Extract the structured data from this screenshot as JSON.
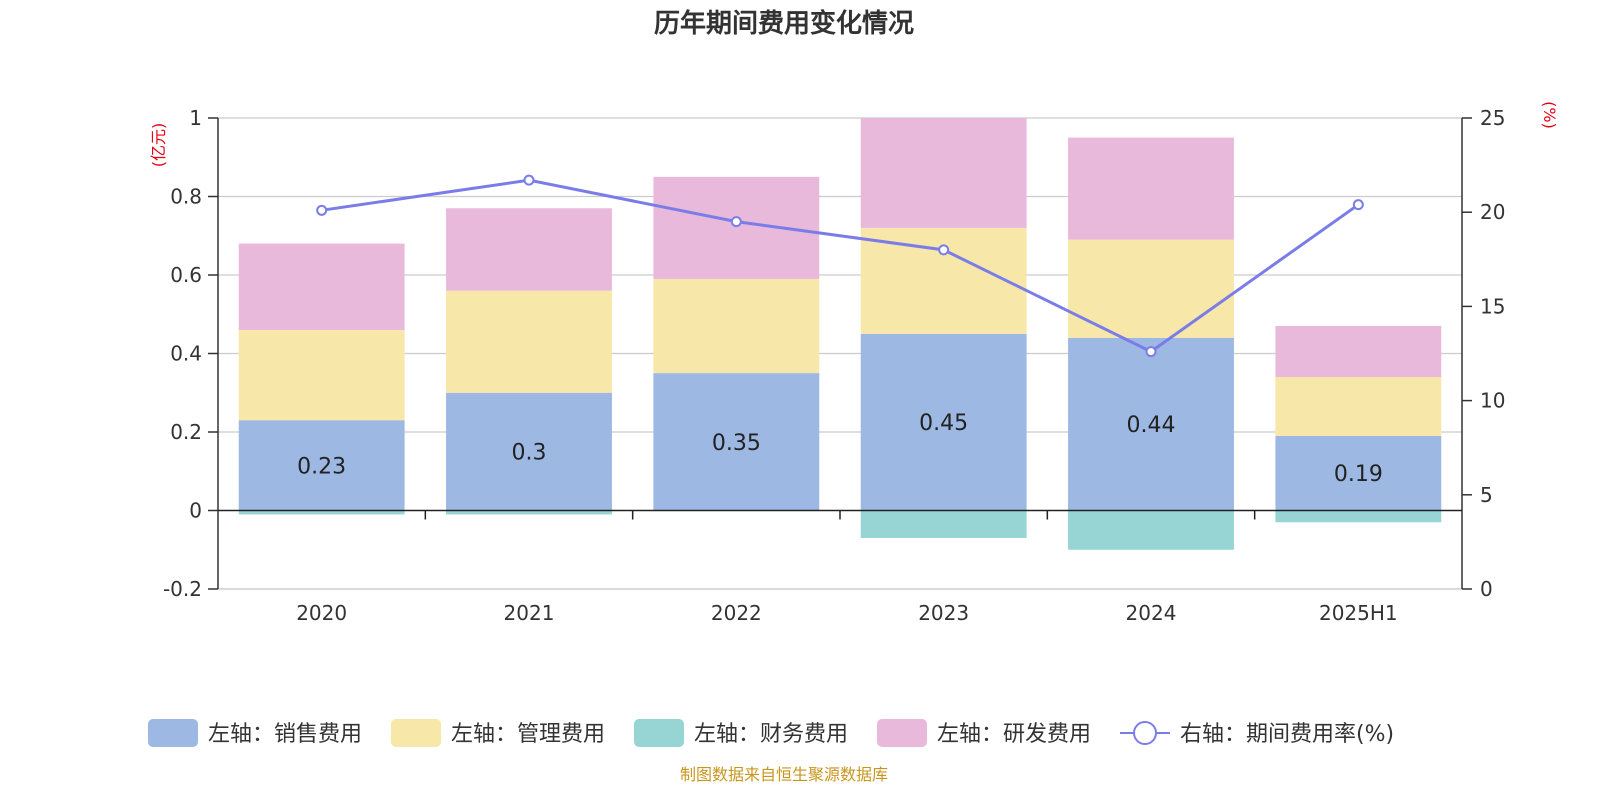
{
  "chart_data": {
    "type": "bar",
    "title": "历年期间费用变化情况",
    "categories": [
      "2020",
      "2021",
      "2022",
      "2023",
      "2024",
      "2025H1"
    ],
    "stacked": true,
    "left_axis": {
      "unit": "(亿元)",
      "ylim": [
        -0.2,
        1
      ],
      "ticks": [
        -0.2,
        0,
        0.2,
        0.4,
        0.6,
        0.8,
        1
      ]
    },
    "right_axis": {
      "unit": "(%)",
      "ylim": [
        0,
        25
      ],
      "ticks": [
        0,
        5,
        10,
        15,
        20,
        25
      ]
    },
    "series": [
      {
        "name": "左轴：销售费用",
        "axis": "left",
        "type": "bar",
        "color": "#9db8e2",
        "values": [
          0.23,
          0.3,
          0.35,
          0.45,
          0.44,
          0.19
        ],
        "labels": [
          "0.23",
          "0.3",
          "0.35",
          "0.45",
          "0.44",
          "0.19"
        ]
      },
      {
        "name": "左轴：管理费用",
        "axis": "left",
        "type": "bar",
        "color": "#f7e7a8",
        "values": [
          0.23,
          0.26,
          0.24,
          0.27,
          0.25,
          0.15
        ]
      },
      {
        "name": "左轴：财务费用",
        "axis": "left",
        "type": "bar",
        "color": "#97d4d4",
        "values": [
          -0.01,
          -0.01,
          0.0,
          -0.07,
          -0.1,
          -0.03
        ]
      },
      {
        "name": "左轴：研发费用",
        "axis": "left",
        "type": "bar",
        "color": "#e8b9da",
        "values": [
          0.22,
          0.21,
          0.26,
          0.28,
          0.26,
          0.13
        ]
      },
      {
        "name": "右轴：期间费用率(%)",
        "axis": "right",
        "type": "line",
        "color": "#7a7de8",
        "values": [
          20.1,
          21.7,
          19.5,
          18.0,
          12.6,
          20.4
        ]
      }
    ],
    "grid": true,
    "legend_position": "bottom"
  },
  "footer": {
    "source": "制图数据来自恒生聚源数据库"
  }
}
